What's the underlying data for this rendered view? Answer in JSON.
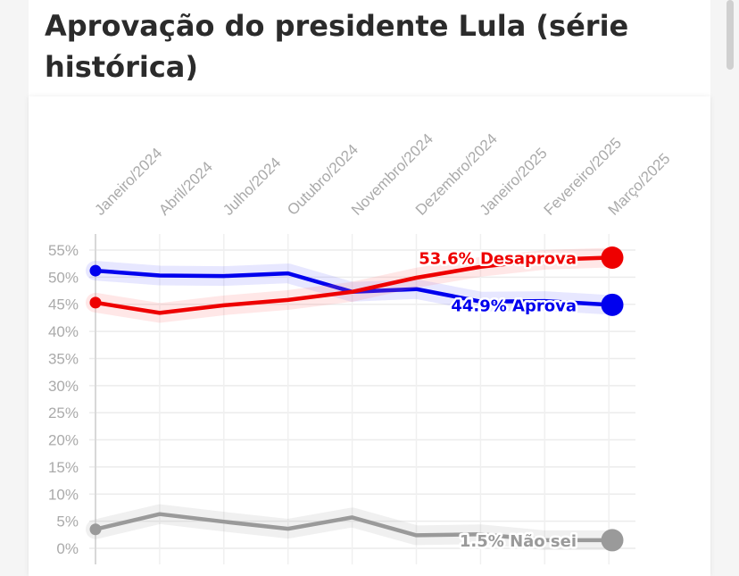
{
  "chart_data": {
    "type": "line",
    "title": "Aprovação do presidente Lula (série histórica)",
    "y_ticks": [
      "55%",
      "50%",
      "45%",
      "40%",
      "35%",
      "30%",
      "25%",
      "20%",
      "15%",
      "10%",
      "5%",
      "0%"
    ],
    "x_ticks": [
      "Janeiro/2024",
      "Abril/2024",
      "Julho/2024",
      "Outubro/2024",
      "Novembro/2024",
      "Dezembro/2024",
      "Janeiro/2025",
      "Fevereiro/2025",
      "Março/2025"
    ],
    "ylim": [
      0,
      55
    ],
    "grid": true,
    "series": [
      {
        "name": "Aprova",
        "end_label": "44.9% Aprova",
        "color": "#0000ee",
        "values": [
          51.2,
          50.3,
          50.2,
          50.7,
          47.3,
          47.8,
          45.5,
          45.6,
          44.9
        ]
      },
      {
        "name": "Desaprova",
        "end_label": "53.6% Desaprova",
        "color": "#ee0000",
        "values": [
          45.3,
          43.4,
          44.8,
          45.8,
          47.3,
          49.9,
          51.9,
          53.2,
          53.6
        ]
      },
      {
        "name": "Não sei",
        "end_label": "1.5% Não sei",
        "color": "#9a9a9a",
        "values": [
          3.5,
          6.3,
          4.9,
          3.6,
          5.7,
          2.4,
          2.6,
          1.5,
          1.5
        ]
      }
    ]
  }
}
